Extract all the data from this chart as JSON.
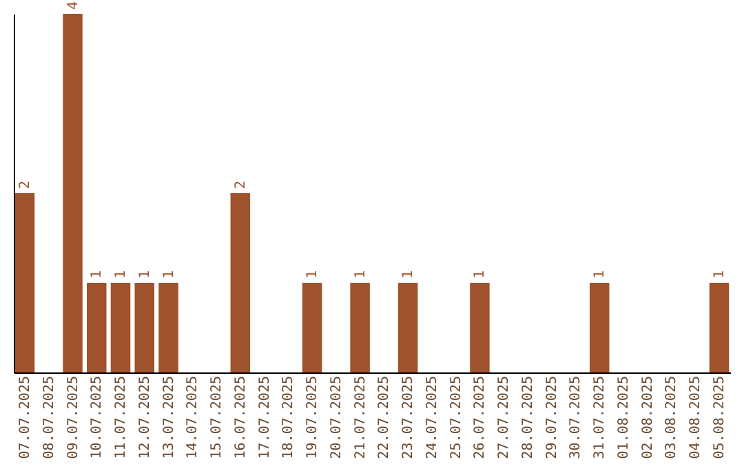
{
  "chart_data": {
    "type": "bar",
    "color": "#a0522d",
    "categories": [
      "07.07.2025",
      "08.07.2025",
      "09.07.2025",
      "10.07.2025",
      "11.07.2025",
      "12.07.2025",
      "13.07.2025",
      "14.07.2025",
      "15.07.2025",
      "16.07.2025",
      "17.07.2025",
      "18.07.2025",
      "19.07.2025",
      "20.07.2025",
      "21.07.2025",
      "22.07.2025",
      "23.07.2025",
      "24.07.2025",
      "25.07.2025",
      "26.07.2025",
      "27.07.2025",
      "28.07.2025",
      "29.07.2025",
      "30.07.2025",
      "31.07.2025",
      "01.08.2025",
      "02.08.2025",
      "03.08.2025",
      "04.08.2025",
      "05.08.2025"
    ],
    "values": [
      2,
      0,
      4,
      1,
      1,
      1,
      1,
      0,
      0,
      2,
      0,
      0,
      1,
      0,
      1,
      0,
      1,
      0,
      0,
      1,
      0,
      0,
      0,
      0,
      1,
      0,
      0,
      0,
      0,
      1
    ],
    "value_labels": [
      "2",
      null,
      "4",
      "1",
      "1",
      "1",
      "1",
      null,
      null,
      "2",
      null,
      null,
      "1",
      null,
      "1",
      null,
      "1",
      null,
      null,
      "1",
      null,
      null,
      null,
      null,
      "1",
      null,
      null,
      null,
      null,
      "1"
    ],
    "grid": false
  }
}
